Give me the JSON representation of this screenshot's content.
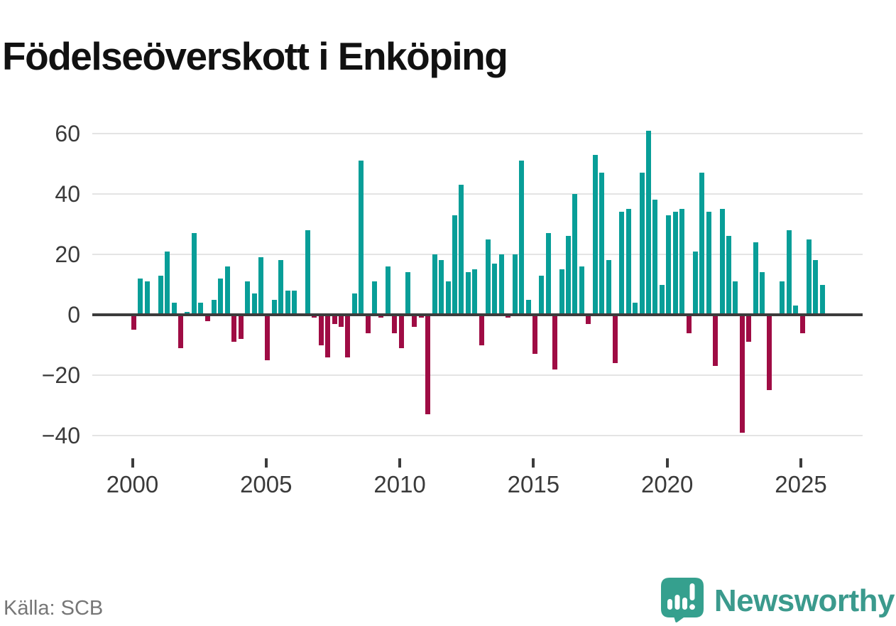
{
  "title": "Födelseöverskott i Enköping",
  "source_note": "Källa: SCB",
  "branding": {
    "name": "Newsworthy",
    "icon": "newsworthy-speech-bubble-bar-chart-exclamation-icon",
    "color": "#3b9a8d"
  },
  "colors": {
    "positive_bar": "#089e98",
    "negative_bar": "#9f0c44",
    "axis": "#3c3c3c",
    "gridline": "#e4e4e4",
    "tick_label": "#3a3a3a",
    "source_text": "#767676",
    "background": "#ffffff"
  },
  "chart_data": {
    "type": "bar",
    "title": "Födelseöverskott i Enköping",
    "frequency": "quarterly",
    "start_period": "2000-Q1",
    "end_period": "2025-Q4",
    "values": [
      -5,
      12,
      11,
      0,
      13,
      21,
      4,
      -11,
      1,
      27,
      4,
      -2,
      5,
      12,
      16,
      -9,
      -8,
      11,
      7,
      19,
      -15,
      5,
      18,
      8,
      8,
      0,
      28,
      -1,
      -10,
      -14,
      -3,
      -4,
      -14,
      7,
      51,
      -6,
      11,
      -1,
      16,
      -6,
      -11,
      14,
      -4,
      -1,
      -33,
      20,
      18,
      11,
      33,
      43,
      14,
      15,
      -10,
      25,
      17,
      20,
      -1,
      20,
      51,
      5,
      -13,
      13,
      27,
      -18,
      15,
      26,
      40,
      16,
      -3,
      53,
      47,
      18,
      -16,
      34,
      35,
      4,
      47,
      61,
      38,
      10,
      33,
      34,
      35,
      -6,
      21,
      47,
      34,
      -17,
      35,
      26,
      11,
      -39,
      -9,
      24,
      14,
      -25,
      0,
      11,
      28,
      3,
      -6,
      25,
      18,
      10
    ],
    "yticks": [
      60,
      40,
      20,
      0,
      -20,
      -40
    ],
    "ylim": [
      -45,
      65
    ],
    "xticks": [
      2000,
      2005,
      2010,
      2015,
      2020,
      2025
    ],
    "grid": "horizontal",
    "baseline": 0,
    "legend": "none",
    "positive_color": "#089e98",
    "negative_color": "#9f0c44"
  }
}
